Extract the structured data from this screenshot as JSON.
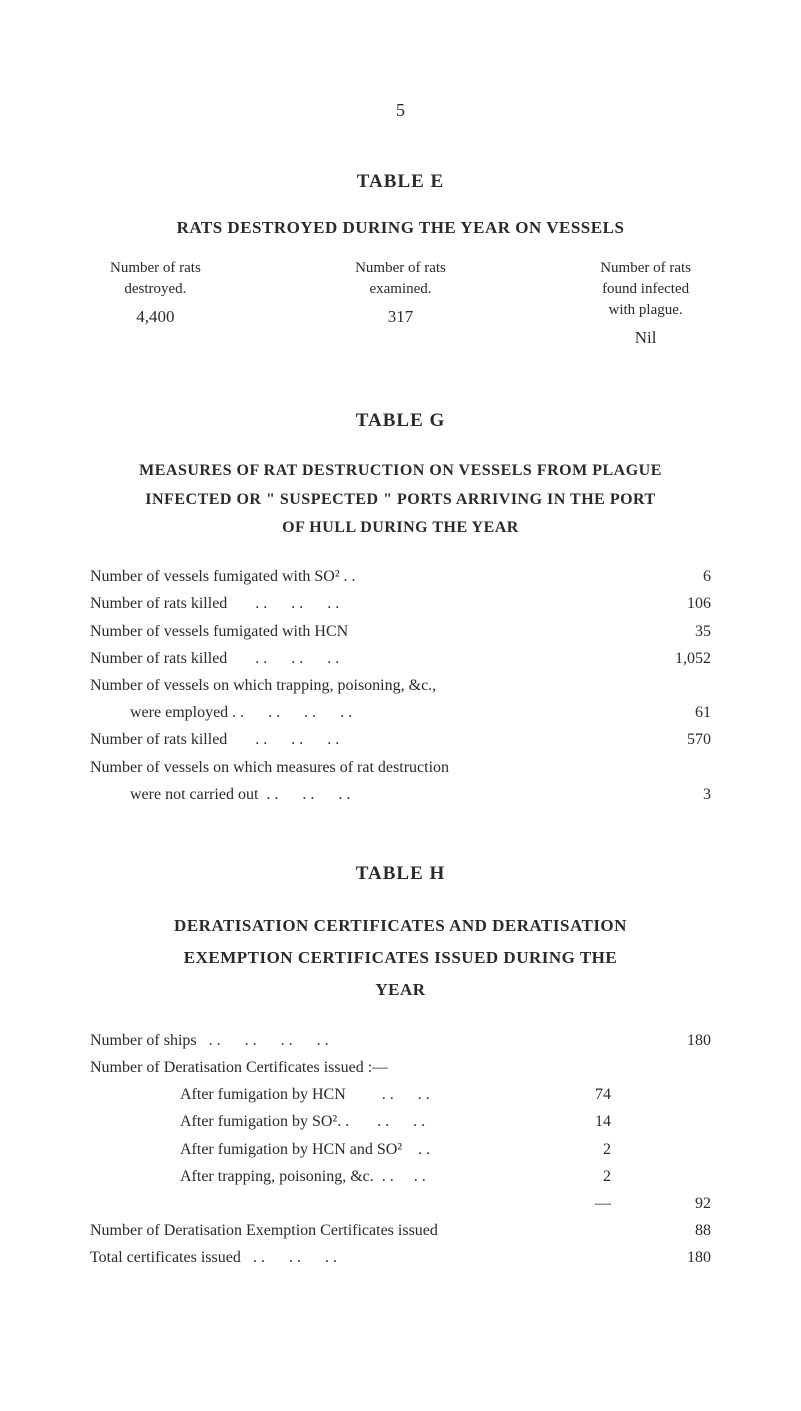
{
  "page_number": "5",
  "table_e": {
    "title": "TABLE  E",
    "subtitle": "RATS DESTROYED DURING THE YEAR ON VESSELS",
    "columns": [
      {
        "header_lines": [
          "Number of rats",
          "destroyed."
        ],
        "value": "4,400"
      },
      {
        "header_lines": [
          "Number of rats",
          "examined."
        ],
        "value": "317"
      },
      {
        "header_lines": [
          "Number of rats",
          "found infected",
          "with plague."
        ],
        "value": "Nil"
      }
    ]
  },
  "table_g": {
    "title": "TABLE  G",
    "heading_line_1": "MEASURES OF RAT DESTRUCTION ON VESSELS FROM PLAGUE",
    "heading_line_2": "INFECTED OR \" SUSPECTED \" PORTS ARRIVING IN THE PORT",
    "heading_line_3": "OF HULL DURING THE YEAR",
    "rows": [
      {
        "label": "Number of vessels fumigated with SO² . .",
        "value": "6",
        "indent": false
      },
      {
        "label": "Number of rats killed       . .      . .      . .",
        "value": "106",
        "indent": false
      },
      {
        "label": "Number of vessels fumigated with HCN",
        "value": "35",
        "indent": false
      },
      {
        "label": "Number of rats killed       . .      . .      . .",
        "value": "1,052",
        "indent": false
      },
      {
        "label": "Number of vessels on which trapping, poisoning, &c.,",
        "value": "",
        "indent": false
      },
      {
        "label": "were employed . .      . .      . .      . .",
        "value": "61",
        "indent": true
      },
      {
        "label": "Number of rats killed       . .      . .      . .",
        "value": "570",
        "indent": false
      },
      {
        "label": "Number of vessels on which measures of rat destruction",
        "value": "",
        "indent": false
      },
      {
        "label": "were not carried out  . .      . .      . .",
        "value": "3",
        "indent": true
      }
    ]
  },
  "table_h": {
    "title": "TABLE  H",
    "heading_line_1": "DERATISATION  CERTIFICATES  AND  DERATISATION",
    "heading_line_2": "EXEMPTION   CERTIFICATES   ISSUED   DURING   THE",
    "heading_line_3": "YEAR",
    "rows": [
      {
        "label": "Number of ships   . .      . .      . .      . .",
        "mid": "",
        "value": "180",
        "sub": false
      },
      {
        "label": "Number of Deratisation Certificates issued :—",
        "mid": "",
        "value": "",
        "sub": false
      },
      {
        "label": "After fumigation by HCN         . .      . .",
        "mid": "74",
        "value": "",
        "sub": true
      },
      {
        "label": "After fumigation by SO². .       . .      . .",
        "mid": "14",
        "value": "",
        "sub": true
      },
      {
        "label": "After fumigation by HCN and SO²    . .",
        "mid": "2",
        "value": "",
        "sub": true
      },
      {
        "label": "After trapping, poisoning, &c.  . .     . .",
        "mid": "2",
        "value": "",
        "sub": true
      },
      {
        "label": "",
        "mid": "—",
        "value": "92",
        "sub": false
      },
      {
        "label": "Number of Deratisation Exemption Certificates issued",
        "mid": "",
        "value": "88",
        "sub": false
      },
      {
        "label": "Total certificates issued   . .      . .      . .",
        "mid": "",
        "value": "180",
        "sub": false
      }
    ]
  }
}
